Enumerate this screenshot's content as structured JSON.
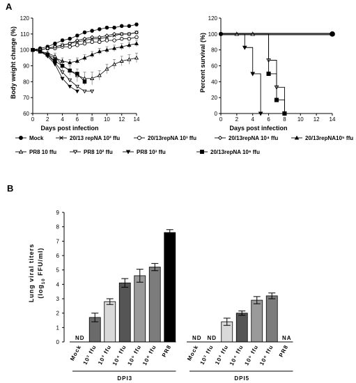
{
  "panel_labels": {
    "a": "A",
    "b": "B"
  },
  "chart_data": [
    {
      "type": "line",
      "xlabel": "Days post infection",
      "ylabel": "Body weight change (%)",
      "xlim": [
        0,
        14
      ],
      "ylim": [
        60,
        120
      ],
      "xticks": [
        0,
        2,
        4,
        6,
        8,
        10,
        12,
        14
      ],
      "yticks": [
        60,
        70,
        80,
        90,
        100,
        110,
        120
      ],
      "x": [
        0,
        1,
        2,
        3,
        4,
        5,
        6,
        7,
        8,
        9,
        10,
        11,
        12,
        13,
        14
      ],
      "series": [
        {
          "name": "Mock",
          "marker": "circle",
          "values": [
            100,
            101,
            102,
            104,
            106,
            107,
            109,
            111,
            112,
            113,
            114,
            114,
            115,
            115,
            116
          ]
        },
        {
          "name": "20/13 repNA 10² ffu",
          "marker": "x",
          "values": [
            100,
            100,
            101,
            102,
            103,
            104,
            105,
            106,
            107,
            107,
            108,
            109,
            110,
            110,
            111
          ]
        },
        {
          "name": "20/13repNA 10³ ffu",
          "marker": "circle-open",
          "values": [
            100,
            100,
            101,
            101,
            102,
            102,
            103,
            104,
            105,
            105,
            106,
            106,
            107,
            107,
            108
          ]
        },
        {
          "name": "20/13repNA 10⁴ ffu",
          "marker": "diamond-open",
          "values": [
            100,
            100,
            101,
            102,
            103,
            104,
            106,
            107,
            108,
            108,
            109,
            110,
            110,
            110,
            111
          ]
        },
        {
          "name": "20/13repNA10⁵ ffu",
          "marker": "triangle-filled",
          "values": [
            100,
            99,
            97,
            95,
            93,
            92,
            93,
            95,
            97,
            99,
            100,
            101,
            102,
            103,
            104
          ]
        },
        {
          "name": "PR8 10 ffu",
          "marker": "triangle-open",
          "values": [
            100,
            99,
            98,
            96,
            90,
            87,
            84,
            82,
            82,
            84,
            88,
            91,
            93,
            94,
            95
          ]
        },
        {
          "name": "PR8 10² ffu",
          "marker": "triangle-down-open",
          "values": [
            100,
            99,
            97,
            92,
            86,
            81,
            77,
            74,
            74,
            null,
            null,
            null,
            null,
            null,
            null
          ]
        },
        {
          "name": "PR8 10³ ffu",
          "marker": "triangle-down-filled",
          "values": [
            100,
            99,
            96,
            91,
            82,
            77,
            74,
            null,
            null,
            null,
            null,
            null,
            null,
            null,
            null
          ]
        },
        {
          "name": "20/13repNA 10⁶ ffu",
          "marker": "square",
          "values": [
            100,
            99,
            97,
            93,
            90,
            87,
            85,
            80,
            null,
            null,
            null,
            null,
            null,
            null,
            null
          ]
        }
      ]
    },
    {
      "type": "line",
      "step": true,
      "xlabel": "Days post infection",
      "ylabel": "Percent survival (%)",
      "xlim": [
        0,
        14
      ],
      "ylim": [
        0,
        120
      ],
      "xticks": [
        0,
        2,
        4,
        6,
        8,
        10,
        12,
        14
      ],
      "yticks": [
        0,
        20,
        40,
        60,
        80,
        100,
        120
      ],
      "series": [
        {
          "name": "Mock and 20/13repNA 10²–10⁵ ffu",
          "marker": "circle",
          "x": [
            0,
            14
          ],
          "values": [
            100,
            100
          ]
        },
        {
          "name": "PR8 10 ffu",
          "marker": "triangle-open",
          "x": [
            0,
            2,
            4,
            14
          ],
          "values": [
            100,
            100,
            100,
            100
          ]
        },
        {
          "name": "PR8 10³ ffu",
          "marker": "triangle-down-filled",
          "x": [
            0,
            3,
            4,
            5
          ],
          "values": [
            100,
            83,
            50,
            0
          ]
        },
        {
          "name": "PR8 10² ffu",
          "marker": "triangle-down-open",
          "x": [
            0,
            6,
            7,
            8
          ],
          "values": [
            100,
            67,
            33,
            0
          ]
        },
        {
          "name": "20/13repNA 10⁶ ffu",
          "marker": "square",
          "x": [
            0,
            6,
            7,
            8
          ],
          "values": [
            100,
            50,
            17,
            0
          ]
        }
      ]
    },
    {
      "type": "bar",
      "ylabel_parts": {
        "line1": "Lung viral titers",
        "open": "(log",
        "sub": "10",
        "rest": " FFU/ml)"
      },
      "ylim": [
        0,
        9
      ],
      "yticks": [
        0,
        1,
        2,
        3,
        4,
        5,
        6,
        7,
        8,
        9
      ],
      "groups": [
        {
          "name": "DPI3",
          "categories": [
            "Mock",
            "10² ffu",
            "10³ ffu",
            "10⁴ ffu",
            "10⁵ ffu",
            "10⁶ ffu",
            "PR8"
          ],
          "values": [
            null,
            1.7,
            2.8,
            4.1,
            4.6,
            5.2,
            7.6
          ],
          "errors": [
            null,
            0.3,
            0.2,
            0.3,
            0.45,
            0.25,
            0.2
          ],
          "bar_labels": [
            "ND",
            null,
            null,
            null,
            null,
            null,
            null
          ],
          "colors": [
            null,
            "#6b6b6b",
            "#d9d9d9",
            "#555555",
            "#9a9a9a",
            "#7c7c7c",
            "#000000"
          ]
        },
        {
          "name": "DPI5",
          "categories": [
            "Mock",
            "10² ffu",
            "10³ ffu",
            "10⁴ ffu",
            "10⁵ ffu",
            "10⁶ ffu",
            "PR8"
          ],
          "values": [
            null,
            null,
            1.4,
            2.0,
            2.9,
            3.2,
            null
          ],
          "errors": [
            null,
            null,
            0.25,
            0.15,
            0.25,
            0.2,
            null
          ],
          "bar_labels": [
            "ND",
            "ND",
            null,
            null,
            null,
            null,
            "NA"
          ],
          "colors": [
            null,
            null,
            "#d9d9d9",
            "#555555",
            "#9a9a9a",
            "#7c7c7c",
            null
          ]
        }
      ]
    }
  ]
}
